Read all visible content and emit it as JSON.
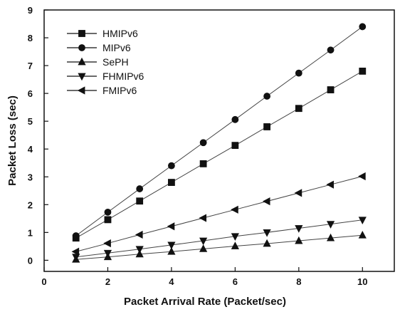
{
  "chart_data": {
    "type": "line",
    "title": "",
    "xlabel": "Packet Arrival Rate (Packet/sec)",
    "ylabel": "Packet Loss (sec)",
    "xlim": [
      0,
      11
    ],
    "ylim": [
      -0.4,
      9
    ],
    "xticks": [
      0,
      2,
      4,
      6,
      8,
      10
    ],
    "yticks": [
      0,
      1,
      2,
      3,
      4,
      5,
      6,
      7,
      8,
      9
    ],
    "grid": false,
    "legend_position": "top-left",
    "x": [
      1,
      2,
      3,
      4,
      5,
      6,
      7,
      8,
      9,
      10
    ],
    "series": [
      {
        "name": "HMIPv6",
        "marker": "square",
        "values": [
          0.8,
          1.46,
          2.13,
          2.8,
          3.47,
          4.13,
          4.8,
          5.46,
          6.13,
          6.8
        ]
      },
      {
        "name": "MIPv6",
        "marker": "circle",
        "values": [
          0.88,
          1.73,
          2.57,
          3.4,
          4.23,
          5.06,
          5.9,
          6.73,
          7.56,
          8.4
        ]
      },
      {
        "name": "SePH",
        "marker": "triangle-up",
        "values": [
          0.03,
          0.12,
          0.22,
          0.31,
          0.41,
          0.51,
          0.6,
          0.7,
          0.8,
          0.9
        ]
      },
      {
        "name": "FHMIPv6",
        "marker": "triangle-down",
        "values": [
          0.12,
          0.26,
          0.4,
          0.55,
          0.7,
          0.86,
          1.0,
          1.15,
          1.3,
          1.45
        ]
      },
      {
        "name": "FMIPv6",
        "marker": "triangle-left",
        "values": [
          0.31,
          0.61,
          0.92,
          1.22,
          1.52,
          1.82,
          2.12,
          2.42,
          2.72,
          3.02
        ]
      }
    ]
  }
}
